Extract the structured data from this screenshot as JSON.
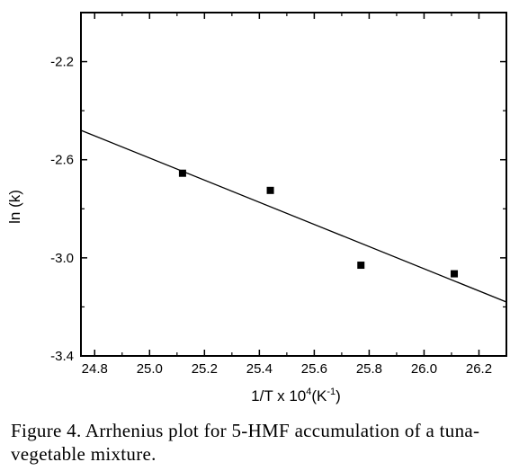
{
  "chart_data": {
    "type": "scatter",
    "xlabel_main": "1/T x 10",
    "xlabel_sup": "4",
    "xlabel_mid": "(K",
    "xlabel_sup2": "-1",
    "xlabel_end": ")",
    "ylabel": "ln (k)",
    "xlim": [
      24.75,
      26.3
    ],
    "ylim": [
      -3.4,
      -2.0
    ],
    "x_ticks": [
      24.8,
      25.0,
      25.2,
      25.4,
      25.6,
      25.8,
      26.0,
      26.2
    ],
    "x_tick_labels": [
      "24.8",
      "25.0",
      "25.2",
      "25.4",
      "25.6",
      "25.8",
      "26.0",
      "26.2"
    ],
    "y_ticks": [
      -3.4,
      -3.0,
      -2.6,
      -2.2
    ],
    "y_tick_labels": [
      "-3.4",
      "-3.0",
      "-2.6",
      "-2.2"
    ],
    "points": [
      {
        "x": 25.12,
        "y": -2.655
      },
      {
        "x": 25.44,
        "y": -2.725
      },
      {
        "x": 25.77,
        "y": -3.03
      },
      {
        "x": 26.11,
        "y": -3.065
      }
    ],
    "fit_line": [
      {
        "x": 24.75,
        "y": -2.48
      },
      {
        "x": 26.3,
        "y": -3.18
      }
    ],
    "colors": {
      "marker": "#000000",
      "line": "#000000",
      "axes": "#000000"
    }
  },
  "caption": "Figure 4. Arrhenius plot for 5-HMF accumulation of a tuna-vegetable mixture."
}
